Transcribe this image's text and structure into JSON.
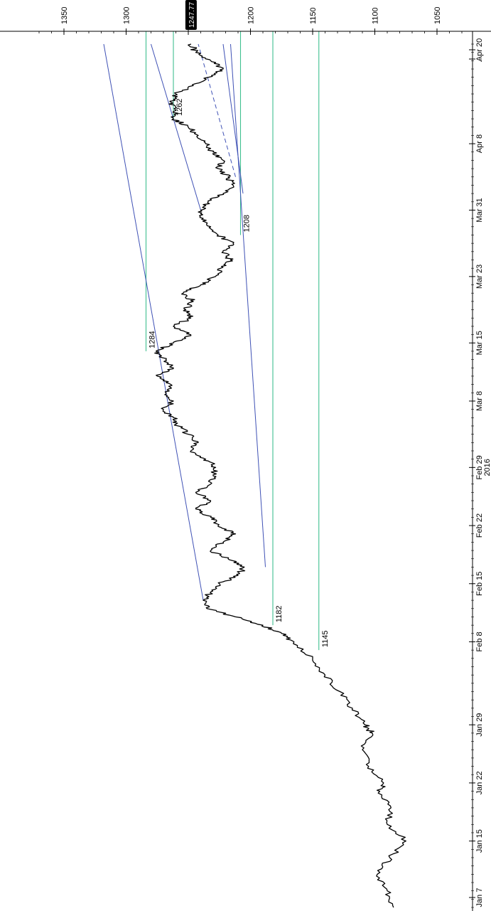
{
  "chart_data": {
    "type": "line",
    "orientation": "rotated-90-clockwise",
    "title": "",
    "xlabel": "",
    "ylabel": "",
    "year_label": "2016",
    "price_range": [
      1015,
      1375
    ],
    "price_ticks": [
      1350,
      1300,
      1250,
      1200,
      1150,
      1100,
      1050
    ],
    "date_ticks": [
      "Jan 7",
      "Jan 15",
      "Jan 22",
      "Jan 29",
      "Feb 8",
      "Feb 15",
      "Feb 22",
      "Feb 29",
      "Mar 8",
      "Mar 15",
      "Mar 23",
      "Mar 31",
      "Apr 8",
      "...",
      "Apr 20"
    ],
    "last_price_label": "1247.77",
    "last_price": 1247.77,
    "colors": {
      "price": "#000000",
      "trendline": "#3f51b5",
      "level": "#3fbf8f",
      "axis": "#000000",
      "tag_bg": "#000000",
      "tag_text": "#ffffff"
    },
    "series": [
      {
        "points": [
          [
            "Jan 7",
            1085
          ],
          [
            "Jan 9",
            1090
          ],
          [
            "Jan 11",
            1098
          ],
          [
            "Jan 13",
            1088
          ],
          [
            "Jan 15",
            1075
          ],
          [
            "Jan 17",
            1090
          ],
          [
            "Jan 19",
            1087
          ],
          [
            "Jan 21",
            1096
          ],
          [
            "Jan 22",
            1093
          ],
          [
            "Jan 24",
            1105
          ],
          [
            "Jan 26",
            1110
          ],
          [
            "Jan 28",
            1102
          ],
          [
            "Jan 29",
            1108
          ],
          [
            "Jan 31",
            1118
          ],
          [
            "Feb 2",
            1128
          ],
          [
            "Feb 4",
            1140
          ],
          [
            "Feb 6",
            1150
          ],
          [
            "Feb 8",
            1165
          ],
          [
            "Feb 9",
            1175
          ],
          [
            "Feb 10",
            1190
          ],
          [
            "Feb 11",
            1212
          ],
          [
            "Feb 12",
            1235
          ],
          [
            "Feb 13",
            1238
          ],
          [
            "Feb 14",
            1232
          ],
          [
            "Feb 15",
            1225
          ],
          [
            "Feb 16",
            1210
          ],
          [
            "Feb 17",
            1205
          ],
          [
            "Feb 18",
            1218
          ],
          [
            "Feb 19",
            1232
          ],
          [
            "Feb 20",
            1222
          ],
          [
            "Feb 21",
            1212
          ],
          [
            "Feb 22",
            1226
          ],
          [
            "Feb 23",
            1232
          ],
          [
            "Feb 24",
            1244
          ],
          [
            "Feb 25",
            1232
          ],
          [
            "Feb 26",
            1244
          ],
          [
            "Feb 27",
            1232
          ],
          [
            "Feb 28",
            1230
          ],
          [
            "Feb 29",
            1228
          ],
          [
            "Mar 1",
            1236
          ],
          [
            "Mar 2",
            1248
          ],
          [
            "Mar 3",
            1242
          ],
          [
            "Mar 4",
            1250
          ],
          [
            "Mar 5",
            1258
          ],
          [
            "Mar 6",
            1262
          ],
          [
            "Mar 7",
            1270
          ],
          [
            "Mar 8",
            1262
          ],
          [
            "Mar 9",
            1268
          ],
          [
            "Mar 10",
            1264
          ],
          [
            "Mar 11",
            1275
          ],
          [
            "Mar 12",
            1262
          ],
          [
            "Mar 13",
            1268
          ],
          [
            "Mar 14",
            1276
          ],
          [
            "Mar 15",
            1262
          ],
          [
            "Mar 16",
            1248
          ],
          [
            "Mar 17",
            1262
          ],
          [
            "Mar 18",
            1248
          ],
          [
            "Mar 19",
            1252
          ],
          [
            "Mar 20",
            1246
          ],
          [
            "Mar 21",
            1254
          ],
          [
            "Mar 22",
            1240
          ],
          [
            "Mar 23",
            1228
          ],
          [
            "Mar 24",
            1224
          ],
          [
            "Mar 25",
            1216
          ],
          [
            "Mar 26",
            1222
          ],
          [
            "Mar 27",
            1214
          ],
          [
            "Mar 28",
            1226
          ],
          [
            "Mar 29",
            1232
          ],
          [
            "Mar 30",
            1238
          ],
          [
            "Mar 31",
            1240
          ],
          [
            "Apr 1",
            1234
          ],
          [
            "Apr 2",
            1222
          ],
          [
            "Apr 3",
            1214
          ],
          [
            "Apr 4",
            1218
          ],
          [
            "Apr 5",
            1226
          ],
          [
            "Apr 6",
            1222
          ],
          [
            "Apr 7",
            1230
          ],
          [
            "Apr 8",
            1236
          ],
          [
            "Apr 9",
            1242
          ],
          [
            "Apr 10",
            1250
          ],
          [
            "Apr 11",
            1262
          ],
          [
            "Apr 12",
            1260
          ],
          [
            "Apr 13",
            1264
          ],
          [
            "Apr 14",
            1260
          ],
          [
            "Apr 15",
            1246
          ],
          [
            "Apr 16",
            1234
          ],
          [
            "Apr 17",
            1222
          ],
          [
            "Apr 18",
            1232
          ],
          [
            "Apr 19",
            1244
          ],
          [
            "Apr 20",
            1247.77
          ]
        ]
      }
    ],
    "levels": [
      {
        "price": 1284,
        "label": "1284",
        "from": "Mar 14",
        "to": "Apr 20"
      },
      {
        "price": 1262,
        "label": "1262",
        "from": "Apr 11",
        "to": "Apr 20"
      },
      {
        "price": 1208,
        "label": "1208",
        "from": "Mar 28",
        "to": "Apr 20"
      },
      {
        "price": 1182,
        "label": "1182",
        "from": "Feb 10",
        "to": "Apr 20"
      },
      {
        "price": 1145,
        "label": "1145",
        "from": "Feb 7",
        "to": "Apr 20"
      }
    ],
    "trendlines": [
      {
        "from": [
          "Feb 13",
          1238
        ],
        "to": [
          "Apr 20",
          1318
        ],
        "style": "solid"
      },
      {
        "from": [
          "Feb 17",
          1188
        ],
        "to": [
          "Apr 20",
          1216
        ],
        "style": "solid"
      },
      {
        "from": [
          "Mar 31",
          1240
        ],
        "to": [
          "Apr 20",
          1280
        ],
        "style": "solid"
      },
      {
        "from": [
          "Apr 2",
          1206
        ],
        "to": [
          "Apr 20",
          1222
        ],
        "style": "solid"
      },
      {
        "from": [
          "Apr 4",
          1212
        ],
        "to": [
          "Apr 20",
          1242
        ],
        "style": "dashed"
      }
    ]
  }
}
